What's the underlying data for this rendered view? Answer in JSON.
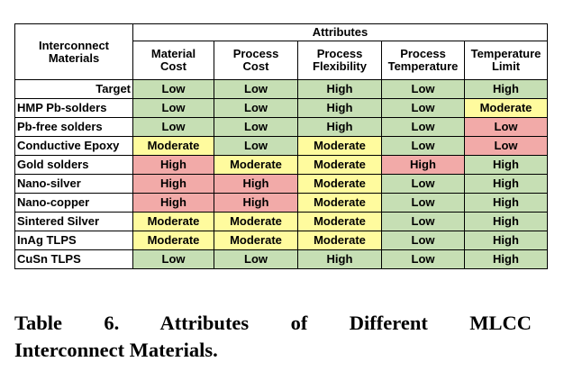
{
  "table": {
    "group_header": "Attributes",
    "row_header": [
      "Interconnect",
      "Materials"
    ],
    "columns": [
      [
        "Material",
        "Cost"
      ],
      [
        "Process",
        "Cost"
      ],
      [
        "Process",
        "Flexibility"
      ],
      [
        "Process",
        "Temperature"
      ],
      [
        "Temperature",
        "Limit"
      ]
    ],
    "rows": [
      {
        "label": "Target",
        "cells": [
          {
            "v": "Low",
            "c": "g"
          },
          {
            "v": "Low",
            "c": "g"
          },
          {
            "v": "High",
            "c": "g"
          },
          {
            "v": "Low",
            "c": "g"
          },
          {
            "v": "High",
            "c": "g"
          }
        ]
      },
      {
        "label": "HMP Pb-solders",
        "cells": [
          {
            "v": "Low",
            "c": "g"
          },
          {
            "v": "Low",
            "c": "g"
          },
          {
            "v": "High",
            "c": "g"
          },
          {
            "v": "Low",
            "c": "g"
          },
          {
            "v": "Moderate",
            "c": "y"
          }
        ]
      },
      {
        "label": "Pb-free solders",
        "cells": [
          {
            "v": "Low",
            "c": "g"
          },
          {
            "v": "Low",
            "c": "g"
          },
          {
            "v": "High",
            "c": "g"
          },
          {
            "v": "Low",
            "c": "g"
          },
          {
            "v": "Low",
            "c": "r"
          }
        ]
      },
      {
        "label": "Conductive Epoxy",
        "cells": [
          {
            "v": "Moderate",
            "c": "y"
          },
          {
            "v": "Low",
            "c": "g"
          },
          {
            "v": "Moderate",
            "c": "y"
          },
          {
            "v": "Low",
            "c": "g"
          },
          {
            "v": "Low",
            "c": "r"
          }
        ]
      },
      {
        "label": "Gold solders",
        "cells": [
          {
            "v": "High",
            "c": "r"
          },
          {
            "v": "Moderate",
            "c": "y"
          },
          {
            "v": "Moderate",
            "c": "y"
          },
          {
            "v": "High",
            "c": "r"
          },
          {
            "v": "High",
            "c": "g"
          }
        ]
      },
      {
        "label": "Nano-silver",
        "cells": [
          {
            "v": "High",
            "c": "r"
          },
          {
            "v": "High",
            "c": "r"
          },
          {
            "v": "Moderate",
            "c": "y"
          },
          {
            "v": "Low",
            "c": "g"
          },
          {
            "v": "High",
            "c": "g"
          }
        ]
      },
      {
        "label": "Nano-copper",
        "cells": [
          {
            "v": "High",
            "c": "r"
          },
          {
            "v": "High",
            "c": "r"
          },
          {
            "v": "Moderate",
            "c": "y"
          },
          {
            "v": "Low",
            "c": "g"
          },
          {
            "v": "High",
            "c": "g"
          }
        ]
      },
      {
        "label": "Sintered Silver",
        "cells": [
          {
            "v": "Moderate",
            "c": "y"
          },
          {
            "v": "Moderate",
            "c": "y"
          },
          {
            "v": "Moderate",
            "c": "y"
          },
          {
            "v": "Low",
            "c": "g"
          },
          {
            "v": "High",
            "c": "g"
          }
        ]
      },
      {
        "label": "InAg TLPS",
        "cells": [
          {
            "v": "Moderate",
            "c": "y"
          },
          {
            "v": "Moderate",
            "c": "y"
          },
          {
            "v": "Moderate",
            "c": "y"
          },
          {
            "v": "Low",
            "c": "g"
          },
          {
            "v": "High",
            "c": "g"
          }
        ]
      },
      {
        "label": "CuSn TLPS",
        "cells": [
          {
            "v": "Low",
            "c": "g"
          },
          {
            "v": "Low",
            "c": "g"
          },
          {
            "v": "High",
            "c": "g"
          },
          {
            "v": "Low",
            "c": "g"
          },
          {
            "v": "High",
            "c": "g"
          }
        ]
      }
    ]
  },
  "colors": {
    "g": "#c6dfb4",
    "y": "#fffb9e",
    "r": "#f2aaa8"
  },
  "caption": {
    "line1": "Table 6. Attributes of Different MLCC",
    "line2": "Interconnect Materials."
  }
}
